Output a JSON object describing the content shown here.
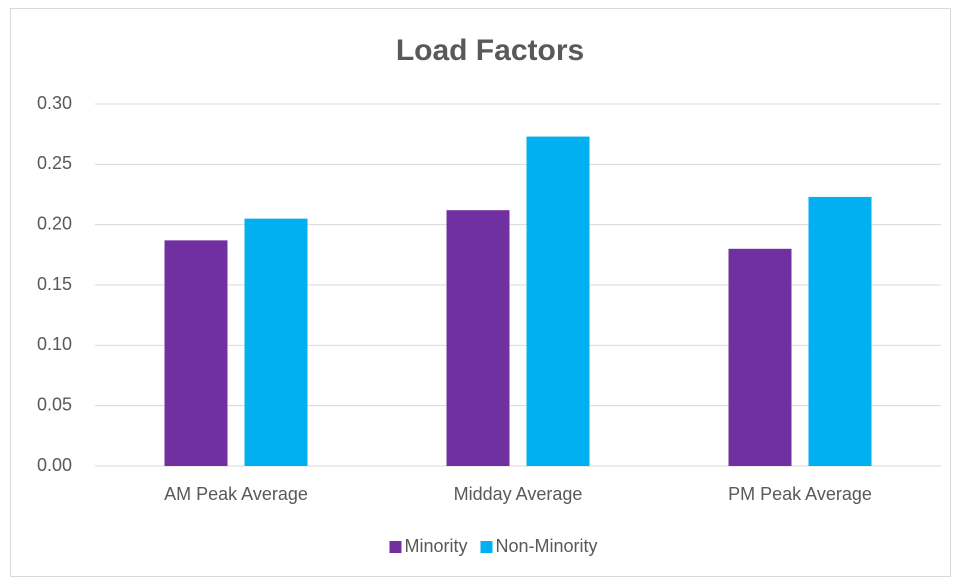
{
  "chart_data": {
    "type": "bar",
    "title": "Load Factors",
    "categories": [
      "AM Peak Average",
      "Midday Average",
      "PM Peak Average"
    ],
    "series": [
      {
        "name": "Minority",
        "color": "#7030a0",
        "values": [
          0.187,
          0.212,
          0.18
        ]
      },
      {
        "name": "Non-Minority",
        "color": "#00b0f0",
        "values": [
          0.205,
          0.273,
          0.223
        ]
      }
    ],
    "ylim": [
      0,
      0.3
    ],
    "yticks": [
      {
        "value": 0,
        "label": "0.00"
      },
      {
        "value": 0.05,
        "label": "0.05"
      },
      {
        "value": 0.1,
        "label": "0.10"
      },
      {
        "value": 0.15,
        "label": "0.15"
      },
      {
        "value": 0.2,
        "label": "0.20"
      },
      {
        "value": 0.25,
        "label": "0.25"
      },
      {
        "value": 0.3,
        "label": "0.30"
      }
    ],
    "grid": true,
    "legend": "bottom"
  }
}
